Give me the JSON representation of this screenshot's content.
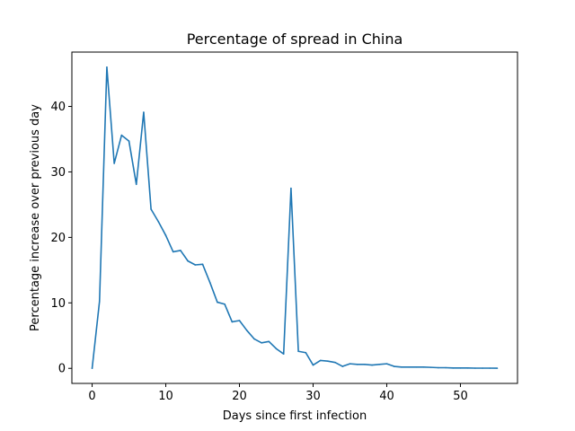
{
  "chart_data": {
    "type": "line",
    "title": "Percentage of spread in China",
    "xlabel": "Days since first infection",
    "ylabel": "Percentage increase over previous day",
    "xlim": [
      -2.75,
      57.75
    ],
    "ylim": [
      -2.3,
      48.3
    ],
    "xticks": [
      0,
      10,
      20,
      30,
      40,
      50
    ],
    "yticks": [
      0,
      10,
      20,
      30,
      40
    ],
    "grid": false,
    "color": "#1f77b4",
    "series": [
      {
        "x": [
          0,
          1,
          2,
          3,
          4,
          5,
          6,
          7,
          8,
          9,
          10,
          11,
          12,
          13,
          14,
          15,
          16,
          17,
          18,
          19,
          20,
          21,
          22,
          23,
          24,
          25,
          26,
          27,
          28,
          29,
          30,
          31,
          32,
          33,
          34,
          35,
          36,
          37,
          38,
          39,
          40,
          41,
          42,
          43,
          44,
          45,
          46,
          47,
          48,
          49,
          50,
          51,
          52,
          53,
          54,
          55
        ],
        "values": [
          0,
          10.2,
          46,
          31.3,
          35.6,
          34.7,
          28.1,
          39.1,
          24.3,
          22.4,
          20.3,
          17.8,
          18,
          16.4,
          15.8,
          15.9,
          13.1,
          10.1,
          9.8,
          7.1,
          7.3,
          5.8,
          4.5,
          3.9,
          4.1,
          3.0,
          2.2,
          27.5,
          2.6,
          2.4,
          0.5,
          1.2,
          1.1,
          0.9,
          0.3,
          0.7,
          0.6,
          0.6,
          0.5,
          0.6,
          0.7,
          0.3,
          0.2,
          0.2,
          0.2,
          0.2,
          0.15,
          0.1,
          0.1,
          0.05,
          0.05,
          0.05,
          0.03,
          0.03,
          0.03,
          0.02
        ]
      }
    ]
  }
}
